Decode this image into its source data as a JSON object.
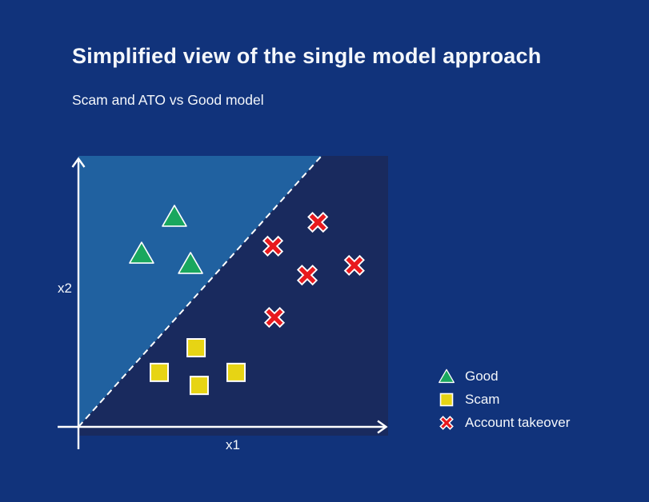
{
  "header": {
    "title": "Simplified view of the single model approach",
    "subtitle": "Scam and ATO vs Good model"
  },
  "colors": {
    "background": "#11337b",
    "text": "#f4f7fb",
    "axis": "#ffffff",
    "marker_outline": "#ffffff"
  },
  "chart_data": {
    "type": "scatter",
    "title": "Simplified view of the single model approach",
    "subtitle": "Scam and ATO vs Good model",
    "xlabel": "x1",
    "ylabel": "x2",
    "axis_ticks_shown": false,
    "coordinate_units": "normalized 0-1 fractions of each axis (no numeric scale shown in figure)",
    "decision_boundary": {
      "style": "dashed",
      "color": "#ffffff",
      "from": [
        0,
        0
      ],
      "to": [
        0.785,
        1.0
      ]
    },
    "regions": [
      {
        "name": "good-region",
        "side": "upper-left",
        "color": "#2061a0"
      },
      {
        "name": "fraud-region",
        "side": "lower-right",
        "color": "#192a5e"
      }
    ],
    "series": [
      {
        "name": "Good",
        "marker": "triangle",
        "color": "#1aa75e",
        "points": [
          [
            0.31,
            0.776
          ],
          [
            0.204,
            0.64
          ],
          [
            0.362,
            0.602
          ]
        ]
      },
      {
        "name": "Scam",
        "marker": "square",
        "color": "#e7d414",
        "points": [
          [
            0.38,
            0.292
          ],
          [
            0.261,
            0.201
          ],
          [
            0.39,
            0.153
          ],
          [
            0.509,
            0.201
          ]
        ]
      },
      {
        "name": "Account takeover",
        "marker": "x",
        "color": "#e8191d",
        "points": [
          [
            0.773,
            0.755
          ],
          [
            0.628,
            0.667
          ],
          [
            0.739,
            0.56
          ],
          [
            0.891,
            0.596
          ],
          [
            0.633,
            0.404
          ]
        ]
      }
    ],
    "legend": {
      "position": "right-bottom",
      "entries": [
        "Good",
        "Scam",
        "Account takeover"
      ]
    }
  }
}
